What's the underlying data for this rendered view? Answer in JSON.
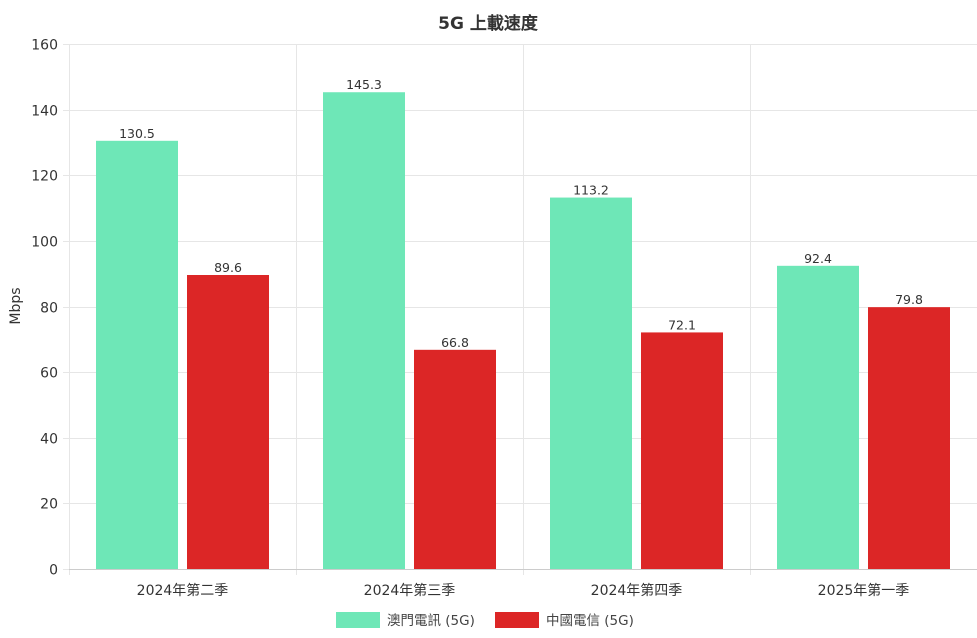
{
  "chart_data": {
    "type": "bar",
    "title": "5G 上載速度",
    "xlabel": "",
    "ylabel": "Mbps",
    "ylim": [
      0,
      160
    ],
    "yticks": [
      0,
      20,
      40,
      60,
      80,
      100,
      120,
      140,
      160
    ],
    "categories": [
      "2024年第二季",
      "2024年第三季",
      "2024年第四季",
      "2025年第一季"
    ],
    "series": [
      {
        "name": "澳門電訊 (5G)",
        "color": "#6ee7b7",
        "values": [
          130.5,
          145.3,
          113.2,
          92.4
        ]
      },
      {
        "name": "中國電信 (5G)",
        "color": "#dc2626",
        "values": [
          89.6,
          66.8,
          72.1,
          79.8
        ]
      }
    ],
    "grid": true,
    "legend_position": "bottom-center"
  }
}
